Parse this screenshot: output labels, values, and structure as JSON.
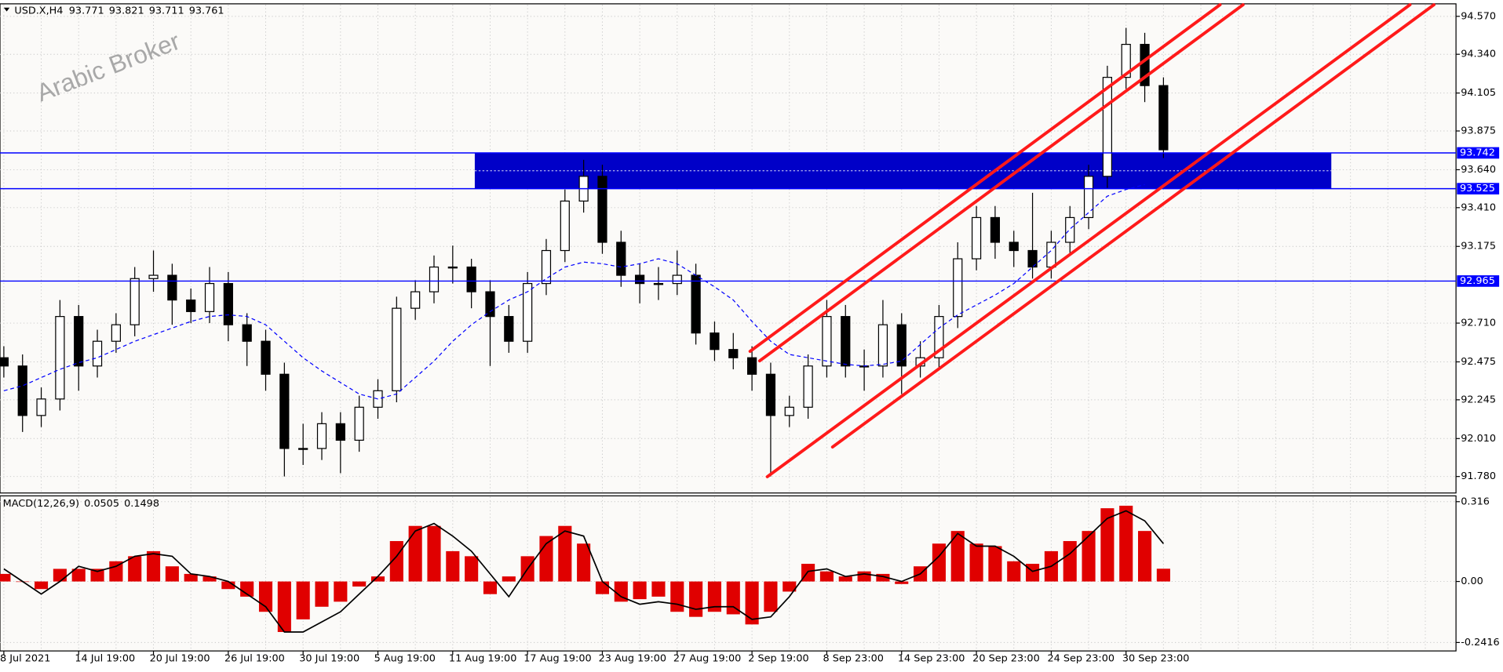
{
  "header": {
    "symbol": "USD.X,H4",
    "open": 93.771,
    "high": 93.821,
    "low": 93.711,
    "close": 93.761
  },
  "watermark": "Arabic Broker",
  "chart_data": [
    {
      "type": "candlestick",
      "categories": [
        "8 Jul 2021",
        null,
        null,
        null,
        "14 Jul 19:00",
        null,
        null,
        null,
        "20 Jul 19:00",
        null,
        null,
        null,
        "26 Jul 19:00",
        null,
        null,
        null,
        "30 Jul 19:00",
        null,
        null,
        null,
        "5 Aug 19:00",
        null,
        null,
        null,
        "11 Aug 19:00",
        null,
        null,
        null,
        "17 Aug 19:00",
        null,
        null,
        null,
        "23 Aug 19:00",
        null,
        null,
        null,
        "27 Aug 19:00",
        null,
        null,
        null,
        "2 Sep 19:00",
        null,
        null,
        null,
        "8 Sep 23:00",
        null,
        null,
        null,
        "14 Sep 23:00",
        null,
        null,
        null,
        "20 Sep 23:00",
        null,
        null,
        null,
        "24 Sep 23:00",
        null,
        null,
        null,
        "30 Sep 23:00",
        null,
        null
      ],
      "open": [
        92.5,
        92.45,
        92.15,
        92.25,
        92.75,
        92.45,
        92.6,
        92.7,
        92.98,
        93.0,
        92.85,
        92.78,
        92.95,
        92.7,
        92.6,
        92.4,
        91.95,
        91.95,
        92.1,
        92.0,
        92.2,
        92.3,
        92.8,
        92.9,
        93.05,
        93.05,
        92.9,
        92.75,
        92.6,
        92.95,
        93.15,
        93.45,
        93.6,
        93.2,
        93.0,
        92.95,
        92.95,
        93.0,
        92.65,
        92.55,
        92.5,
        92.4,
        92.15,
        92.2,
        92.45,
        92.75,
        92.45,
        92.45,
        92.7,
        92.45,
        92.5,
        92.75,
        93.1,
        93.35,
        93.2,
        93.15,
        93.05,
        93.2,
        93.35,
        93.6,
        94.2,
        94.4,
        94.15
      ],
      "high": [
        92.57,
        92.52,
        92.32,
        92.85,
        92.82,
        92.67,
        92.77,
        93.05,
        93.15,
        93.07,
        92.92,
        93.05,
        93.02,
        92.77,
        92.67,
        92.47,
        92.1,
        92.17,
        92.17,
        92.27,
        92.37,
        92.87,
        92.97,
        93.12,
        93.18,
        93.1,
        92.97,
        92.82,
        93.02,
        93.22,
        93.52,
        93.7,
        93.67,
        93.27,
        93.07,
        93.05,
        93.15,
        93.07,
        92.72,
        92.65,
        92.57,
        92.47,
        92.27,
        92.52,
        92.85,
        92.82,
        92.55,
        92.85,
        92.77,
        92.6,
        92.82,
        93.2,
        93.42,
        93.42,
        93.27,
        93.5,
        93.27,
        93.42,
        93.67,
        94.27,
        94.5,
        94.47,
        94.2
      ],
      "low": [
        92.38,
        92.05,
        92.08,
        92.18,
        92.3,
        92.38,
        92.53,
        92.63,
        92.9,
        92.7,
        92.71,
        92.71,
        92.6,
        92.45,
        92.3,
        91.78,
        91.85,
        91.88,
        91.8,
        91.93,
        92.13,
        92.23,
        92.73,
        92.83,
        92.95,
        92.8,
        92.45,
        92.53,
        92.53,
        92.88,
        93.08,
        93.38,
        93.13,
        92.93,
        92.83,
        92.85,
        92.88,
        92.58,
        92.48,
        92.43,
        92.3,
        91.78,
        92.08,
        92.13,
        92.38,
        92.38,
        92.3,
        92.38,
        92.28,
        92.38,
        92.43,
        92.68,
        93.03,
        93.1,
        93.05,
        92.98,
        92.98,
        93.13,
        93.28,
        93.53,
        94.13,
        94.05,
        93.711
      ],
      "close": [
        92.45,
        92.15,
        92.25,
        92.75,
        92.45,
        92.6,
        92.7,
        92.98,
        93.0,
        92.85,
        92.78,
        92.95,
        92.7,
        92.6,
        92.4,
        91.95,
        91.95,
        92.1,
        92.0,
        92.2,
        92.3,
        92.8,
        92.9,
        93.05,
        93.05,
        92.9,
        92.75,
        92.6,
        92.95,
        93.15,
        93.45,
        93.6,
        93.2,
        93.0,
        92.95,
        92.95,
        93.0,
        92.65,
        92.55,
        92.5,
        92.4,
        92.15,
        92.2,
        92.45,
        92.75,
        92.45,
        92.45,
        92.7,
        92.45,
        92.5,
        92.75,
        93.1,
        93.35,
        93.2,
        93.15,
        93.05,
        93.2,
        93.35,
        93.6,
        94.2,
        94.4,
        94.15,
        93.761
      ],
      "moving_average": {
        "color": "#0000ff",
        "values": [
          92.3,
          92.33,
          92.38,
          92.43,
          92.47,
          92.5,
          92.55,
          92.6,
          92.64,
          92.68,
          92.72,
          92.75,
          92.76,
          92.75,
          92.7,
          92.6,
          92.5,
          92.42,
          92.35,
          92.28,
          92.25,
          92.28,
          92.38,
          92.48,
          92.6,
          92.7,
          92.78,
          92.85,
          92.9,
          92.98,
          93.05,
          93.08,
          93.07,
          93.05,
          93.07,
          93.1,
          93.07,
          93.0,
          92.93,
          92.85,
          92.72,
          92.6,
          92.52,
          92.5,
          92.48,
          92.46,
          92.45,
          92.46,
          92.48,
          92.58,
          92.68,
          92.76,
          92.82,
          92.88,
          92.95,
          93.05,
          93.15,
          93.28,
          93.38,
          93.48,
          93.52,
          93.55,
          null
        ]
      },
      "ylim": [
        91.68,
        94.64
      ],
      "yticks": [
        {
          "value": 94.57,
          "label": "94.570"
        },
        {
          "value": 94.34,
          "label": "94.340"
        },
        94.105,
        93.875,
        {
          "value": 93.64,
          "label": "93.640"
        },
        {
          "value": 93.41,
          "label": "93.410"
        },
        93.175,
        {
          "value": 92.71,
          "label": "92.710"
        },
        92.475,
        92.245,
        {
          "value": 92.01,
          "label": "92.010"
        },
        {
          "value": 91.78,
          "label": "91.780"
        }
      ],
      "levels": [
        {
          "value": 93.742,
          "color": "#0000ff"
        },
        {
          "value": 93.525,
          "color": "#0000ff"
        },
        {
          "value": 92.965,
          "color": "#0000ff"
        }
      ],
      "zone_color": "#0000c8",
      "grid": true
    },
    {
      "type": "macd",
      "title": "MACD(12,26,9)",
      "title_values": [
        0.0505,
        0.1498
      ],
      "histogram": {
        "color": "#e00000",
        "values": [
          0.03,
          0.0,
          -0.03,
          0.05,
          0.05,
          0.05,
          0.08,
          0.1,
          0.12,
          0.06,
          0.03,
          0.02,
          -0.03,
          -0.06,
          -0.12,
          -0.2,
          -0.15,
          -0.1,
          -0.08,
          -0.02,
          0.02,
          0.16,
          0.22,
          0.22,
          0.12,
          0.1,
          -0.05,
          0.02,
          0.1,
          0.18,
          0.22,
          0.15,
          -0.05,
          -0.08,
          -0.07,
          -0.06,
          -0.12,
          -0.14,
          -0.12,
          -0.13,
          -0.17,
          -0.12,
          -0.04,
          0.07,
          0.04,
          0.02,
          0.04,
          0.03,
          -0.01,
          0.06,
          0.15,
          0.2,
          0.15,
          0.14,
          0.08,
          0.07,
          0.12,
          0.16,
          0.2,
          0.29,
          0.3,
          0.2,
          0.0505
        ]
      },
      "signal": {
        "color": "#000000",
        "values": [
          0.05,
          0.0,
          -0.05,
          0.0,
          0.06,
          0.04,
          0.06,
          0.1,
          0.11,
          0.1,
          0.03,
          0.02,
          0.0,
          -0.05,
          -0.1,
          -0.2,
          -0.2,
          -0.16,
          -0.12,
          -0.05,
          0.02,
          0.1,
          0.2,
          0.23,
          0.18,
          0.12,
          0.03,
          -0.06,
          0.05,
          0.15,
          0.2,
          0.18,
          0.0,
          -0.06,
          -0.09,
          -0.08,
          -0.09,
          -0.11,
          -0.1,
          -0.1,
          -0.15,
          -0.14,
          -0.06,
          0.04,
          0.05,
          0.02,
          0.03,
          0.02,
          0.0,
          0.03,
          0.1,
          0.19,
          0.14,
          0.14,
          0.1,
          0.04,
          0.06,
          0.11,
          0.18,
          0.25,
          0.28,
          0.24,
          0.1498
        ]
      },
      "ylim": [
        -0.275,
        0.339
      ],
      "yticks": [
        0.316,
        {
          "value": 0,
          "label": "0.00"
        },
        -0.2416
      ],
      "grid": true
    }
  ]
}
